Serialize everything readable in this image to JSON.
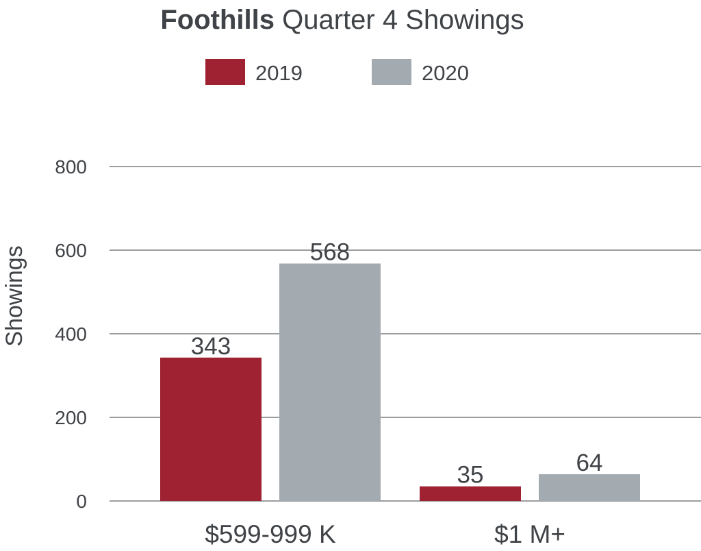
{
  "chart_data": {
    "type": "bar",
    "title_bold": "Foothills",
    "title_rest": "Quarter 4 Showings",
    "ylabel": "Showings",
    "xlabel": "",
    "ylim": [
      0,
      800
    ],
    "yticks": [
      0,
      200,
      400,
      600,
      800
    ],
    "grid": true,
    "legend_position": "top-center",
    "categories": [
      "$599-999 K",
      "$1 M+"
    ],
    "series": [
      {
        "name": "2019",
        "color": "#9e2232",
        "values": [
          343,
          35
        ]
      },
      {
        "name": "2020",
        "color": "#a3abb1",
        "values": [
          568,
          64
        ]
      }
    ]
  }
}
